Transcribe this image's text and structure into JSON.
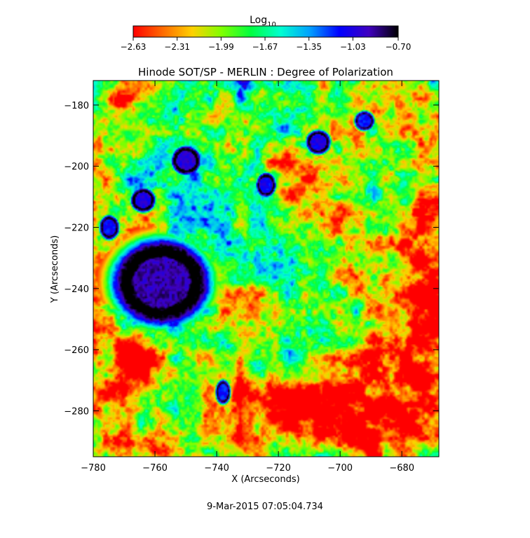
{
  "chart_data": {
    "type": "heatmap",
    "title": "Hinode SOT/SP - MERLIN : Degree of Polarization",
    "xlabel": "X (Arcseconds)",
    "ylabel": "Y (Arcseconds)",
    "xlim": [
      -780,
      -668
    ],
    "ylim": [
      -295,
      -172
    ],
    "x_ticks": [
      -780,
      -760,
      -740,
      -720,
      -700,
      -680
    ],
    "y_ticks": [
      -180,
      -200,
      -220,
      -240,
      -260,
      -280
    ],
    "x_tick_labels": [
      "−780",
      "−760",
      "−740",
      "−720",
      "−700",
      "−680"
    ],
    "y_tick_labels": [
      "−180",
      "−200",
      "−220",
      "−240",
      "−260",
      "−280"
    ],
    "colorbar": {
      "label_base": "Log",
      "label_sub": "10",
      "range": [
        -2.63,
        -0.7
      ],
      "ticks": [
        -2.63,
        -2.31,
        -1.99,
        -1.67,
        -1.35,
        -1.03,
        -0.7
      ],
      "tick_labels": [
        "−2.63",
        "−2.31",
        "−1.99",
        "−1.67",
        "−1.35",
        "−1.03",
        "−0.70"
      ],
      "colormap": [
        "#ff0000",
        "#ff6a00",
        "#ffd000",
        "#7fff00",
        "#00ff40",
        "#00ffd0",
        "#00a0ff",
        "#0000ff",
        "#4000c0",
        "#000000"
      ]
    },
    "features": [
      {
        "kind": "sunspot",
        "x": -758,
        "y": -238,
        "rx": 9,
        "ry": 8,
        "value": -0.85
      },
      {
        "kind": "pore",
        "x": -750,
        "y": -198,
        "rx": 3,
        "ry": 3,
        "value": -0.95
      },
      {
        "kind": "pore",
        "x": -764,
        "y": -211,
        "rx": 2.5,
        "ry": 2.5,
        "value": -1.0
      },
      {
        "kind": "pore",
        "x": -775,
        "y": -220,
        "rx": 2,
        "ry": 2.5,
        "value": -1.05
      },
      {
        "kind": "pore",
        "x": -707,
        "y": -192,
        "rx": 2.5,
        "ry": 2.5,
        "value": -1.0
      },
      {
        "kind": "pore",
        "x": -692,
        "y": -185,
        "rx": 2,
        "ry": 2,
        "value": -1.1
      },
      {
        "kind": "pore",
        "x": -724,
        "y": -206,
        "rx": 2,
        "ry": 2.5,
        "value": -1.05
      },
      {
        "kind": "pore",
        "x": -738,
        "y": -274,
        "rx": 1.5,
        "ry": 2.5,
        "value": -1.1
      }
    ],
    "quiet_regions": [
      {
        "x": -680,
        "y": -250,
        "rx": 15,
        "ry": 45
      },
      {
        "x": -690,
        "y": -285,
        "rx": 20,
        "ry": 12
      },
      {
        "x": -715,
        "y": -280,
        "rx": 10,
        "ry": 12
      },
      {
        "x": -772,
        "y": -182,
        "rx": 10,
        "ry": 8
      },
      {
        "x": -770,
        "y": -270,
        "rx": 10,
        "ry": 20
      }
    ]
  },
  "footer": {
    "timestamp": "9-Mar-2015 07:05:04.734"
  }
}
